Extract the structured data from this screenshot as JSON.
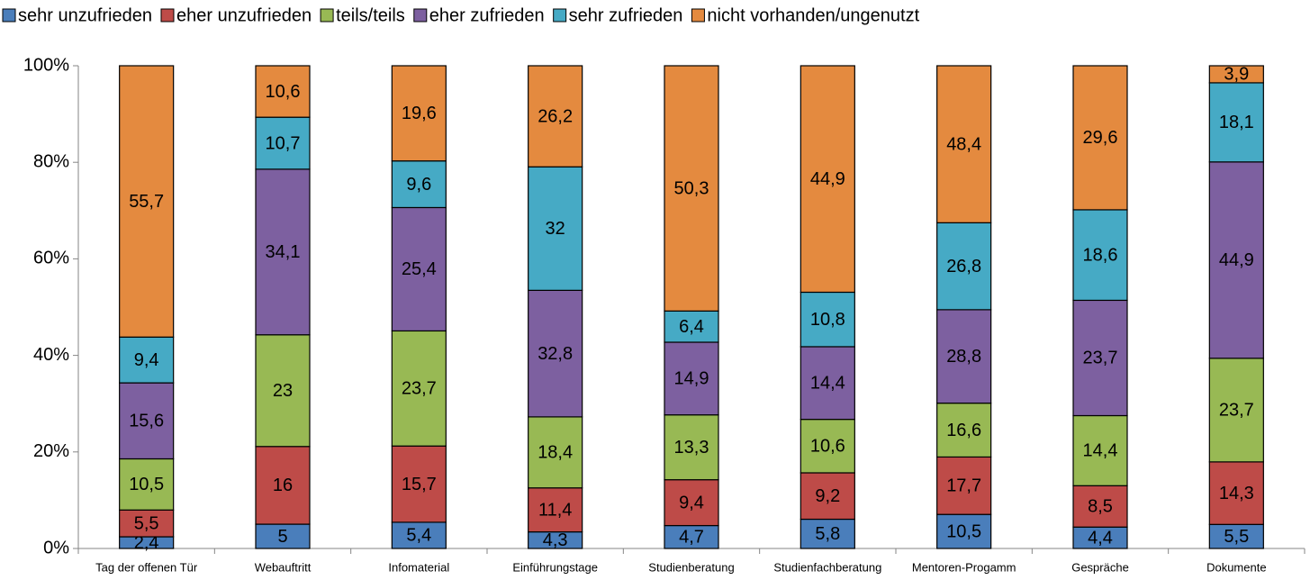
{
  "chart_data": {
    "type": "bar",
    "stacking": "percent",
    "categories": [
      "Tag der offenen Tür",
      "Webauftritt",
      "Infomaterial",
      "Einführungstage",
      "Studienberatung",
      "Studienfachberatung",
      "Mentoren-Progamm",
      "Gespräche",
      "Dokumente"
    ],
    "series": [
      {
        "name": "sehr unzufrieden",
        "color": "#4a7ebb",
        "values": [
          2.4,
          5,
          5.4,
          4.3,
          4.7,
          5.8,
          10.5,
          4.4,
          5.5
        ],
        "value_labels": [
          "2,4",
          "5",
          "5,4",
          "4,3",
          "4,7",
          "5,8",
          "10,5",
          "4,4",
          "5,5"
        ]
      },
      {
        "name": "eher unzufrieden",
        "color": "#be4b48",
        "values": [
          5.5,
          16,
          15.7,
          11.4,
          9.4,
          9.2,
          17.7,
          8.5,
          14.3
        ],
        "value_labels": [
          "5,5",
          "16",
          "15,7",
          "11,4",
          "9,4",
          "9,2",
          "17,7",
          "8,5",
          "14,3"
        ]
      },
      {
        "name": "teils/teils",
        "color": "#98b954",
        "values": [
          10.5,
          23,
          23.7,
          18.4,
          13.3,
          10.6,
          16.6,
          14.4,
          23.7
        ],
        "value_labels": [
          "10,5",
          "23",
          "23,7",
          "18,4",
          "13,3",
          "10,6",
          "16,6",
          "14,4",
          "23,7"
        ]
      },
      {
        "name": "eher zufrieden",
        "color": "#7d60a0",
        "values": [
          15.6,
          34.1,
          25.4,
          32.8,
          14.9,
          14.4,
          28.8,
          23.7,
          44.9
        ],
        "value_labels": [
          "15,6",
          "34,1",
          "25,4",
          "32,8",
          "14,9",
          "14,4",
          "28,8",
          "23,7",
          "44,9"
        ]
      },
      {
        "name": "sehr zufrieden",
        "color": "#46aac5",
        "values": [
          9.4,
          10.7,
          9.6,
          32,
          6.4,
          10.8,
          26.8,
          18.6,
          18.1
        ],
        "value_labels": [
          "9,4",
          "10,7",
          "9,6",
          "32",
          "6,4",
          "10,8",
          "26,8",
          "18,6",
          "18,1"
        ]
      },
      {
        "name": "nicht vorhanden/ungenutzt",
        "color": "#e48a3f",
        "values": [
          55.7,
          10.6,
          19.6,
          26.2,
          50.3,
          44.9,
          48.4,
          29.6,
          3.9
        ],
        "value_labels": [
          "55,7",
          "10,6",
          "19,6",
          "26,2",
          "50,3",
          "44,9",
          "48,4",
          "29,6",
          "3,9"
        ]
      }
    ],
    "ylim": [
      0,
      100
    ],
    "yticks": [
      {
        "value": 0,
        "label": "0%"
      },
      {
        "value": 20,
        "label": "20%"
      },
      {
        "value": 40,
        "label": "40%"
      },
      {
        "value": 60,
        "label": "60%"
      },
      {
        "value": 80,
        "label": "80%"
      },
      {
        "value": 100,
        "label": "100%"
      }
    ],
    "legend": "top"
  }
}
